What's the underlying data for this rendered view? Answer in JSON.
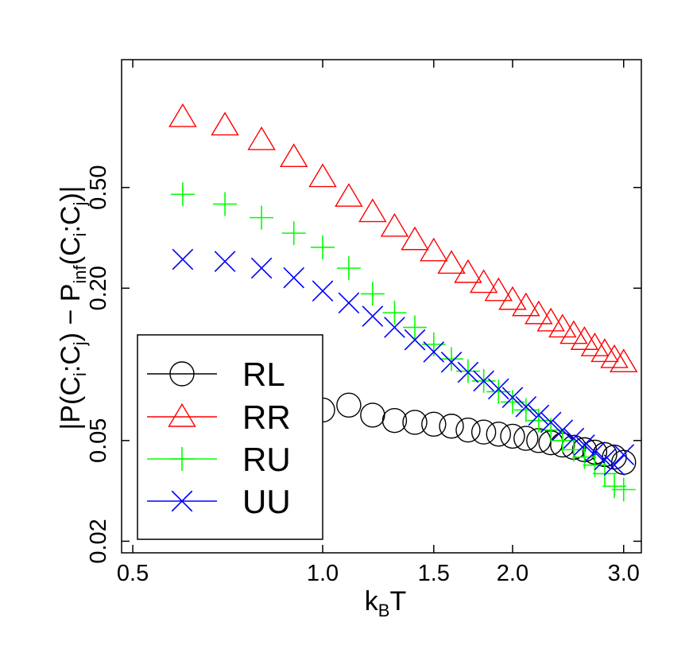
{
  "chart_data": {
    "type": "scatter",
    "xscale": "log",
    "yscale": "log",
    "xlim": [
      0.48,
      3.2
    ],
    "ylim": [
      0.018,
      1.6
    ],
    "xticks": [
      0.5,
      1.0,
      1.5,
      2.0,
      3.0
    ],
    "xtick_labels": [
      "0.5",
      "1.0",
      "1.5",
      "2.0",
      "3.0"
    ],
    "yticks": [
      0.02,
      0.05,
      0.2,
      0.5
    ],
    "ytick_labels": [
      "0.02",
      "0.05",
      "0.20",
      "0.50"
    ],
    "xlabel": {
      "main": "k",
      "sub": "B",
      "tail": "T"
    },
    "ylabel": {
      "p1": "|P(C",
      "s1": "i",
      "p2": ":C",
      "s2": "j",
      "p3": ") − P",
      "s3": "inf",
      "p4": "(C",
      "s4": "i",
      "p5": ":C",
      "s5": "j",
      "p6": ")|"
    },
    "legend_position": "lower-left",
    "series": [
      {
        "name": "RL",
        "marker": "circle",
        "color": "#000000",
        "x": [
          1.0,
          1.1,
          1.2,
          1.3,
          1.4,
          1.5,
          1.6,
          1.7,
          1.8,
          1.9,
          2.0,
          2.1,
          2.2,
          2.3,
          2.4,
          2.5,
          2.6,
          2.7,
          2.8,
          2.9,
          3.0
        ],
        "y": [
          0.066,
          0.069,
          0.063,
          0.06,
          0.059,
          0.058,
          0.057,
          0.055,
          0.054,
          0.053,
          0.052,
          0.051,
          0.05,
          0.049,
          0.048,
          0.047,
          0.046,
          0.045,
          0.044,
          0.043,
          0.041
        ]
      },
      {
        "name": "RR",
        "marker": "triangle",
        "color": "#ff0000",
        "x": [
          0.6,
          0.7,
          0.8,
          0.9,
          1.0,
          1.1,
          1.2,
          1.3,
          1.4,
          1.5,
          1.6,
          1.7,
          1.8,
          1.9,
          2.0,
          2.1,
          2.2,
          2.3,
          2.4,
          2.5,
          2.6,
          2.7,
          2.8,
          2.9,
          3.0
        ],
        "y": [
          0.95,
          0.88,
          0.77,
          0.66,
          0.55,
          0.46,
          0.4,
          0.35,
          0.31,
          0.28,
          0.25,
          0.23,
          0.21,
          0.195,
          0.18,
          0.17,
          0.158,
          0.148,
          0.14,
          0.132,
          0.125,
          0.118,
          0.112,
          0.106,
          0.102
        ]
      },
      {
        "name": "RU",
        "marker": "plus",
        "color": "#00ff00",
        "x": [
          0.6,
          0.7,
          0.8,
          0.9,
          1.0,
          1.1,
          1.2,
          1.3,
          1.4,
          1.5,
          1.6,
          1.7,
          1.8,
          1.9,
          2.0,
          2.1,
          2.2,
          2.3,
          2.4,
          2.5,
          2.6,
          2.7,
          2.8,
          2.9,
          3.0
        ],
        "y": [
          0.47,
          0.43,
          0.38,
          0.33,
          0.29,
          0.24,
          0.19,
          0.16,
          0.14,
          0.12,
          0.105,
          0.094,
          0.086,
          0.078,
          0.071,
          0.066,
          0.06,
          0.055,
          0.05,
          0.046,
          0.043,
          0.04,
          0.037,
          0.033,
          0.032
        ]
      },
      {
        "name": "UU",
        "marker": "x",
        "color": "#0000ff",
        "x": [
          0.6,
          0.7,
          0.8,
          0.9,
          1.0,
          1.1,
          1.2,
          1.3,
          1.4,
          1.5,
          1.6,
          1.7,
          1.8,
          1.9,
          2.0,
          2.1,
          2.2,
          2.3,
          2.4,
          2.5,
          2.6,
          2.7,
          2.8,
          2.9,
          3.0
        ],
        "y": [
          0.26,
          0.255,
          0.24,
          0.22,
          0.195,
          0.175,
          0.155,
          0.14,
          0.125,
          0.112,
          0.102,
          0.093,
          0.086,
          0.08,
          0.074,
          0.068,
          0.063,
          0.059,
          0.055,
          0.051,
          0.048,
          0.045,
          0.042,
          0.04,
          0.044
        ]
      }
    ]
  }
}
